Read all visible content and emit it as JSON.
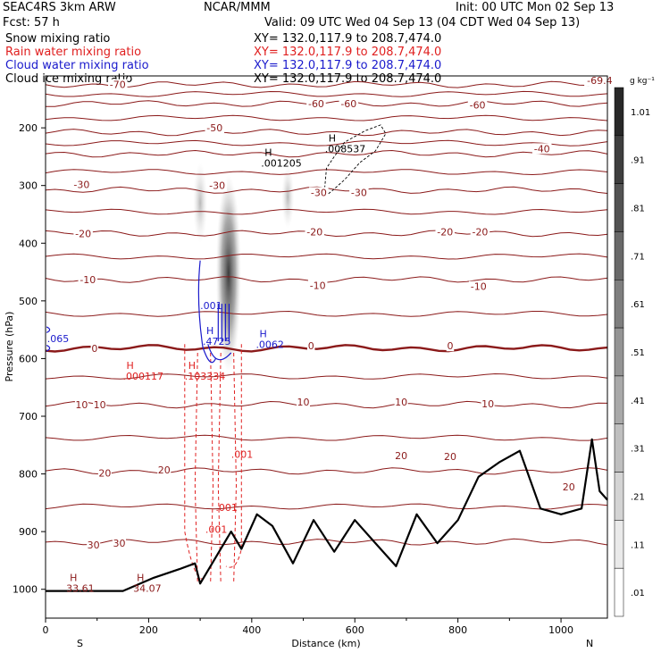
{
  "header": {
    "model": "SEAC4RS   3km ARW",
    "org": "NCAR/MMM",
    "init": "Init: 00 UTC Mon 02 Sep 13",
    "fcst": "Fcst:   57 h",
    "valid": "Valid: 09 UTC Wed 04 Sep 13 (04 CDT Wed 04 Sep 13)",
    "fields": [
      {
        "label": "Snow mixing ratio",
        "xy": "XY= 132.0,117.9 to 208.7,474.0",
        "color": "#000000"
      },
      {
        "label": "Rain water mixing ratio",
        "xy": "XY= 132.0,117.9 to 208.7,474.0",
        "color": "#e02020"
      },
      {
        "label": "Cloud water mixing ratio",
        "xy": "XY= 132.0,117.9 to 208.7,474.0",
        "color": "#1a1acc"
      },
      {
        "label": "Cloud ice mixing ratio",
        "xy": "XY= 132.0,117.9 to 208.7,474.0",
        "color": "#000000"
      }
    ]
  },
  "chart_data": {
    "type": "contour",
    "xlabel": "Distance (km)",
    "ylabel": "Pressure (hPa)",
    "xlim": [
      0,
      1090
    ],
    "ylim": [
      1050,
      110
    ],
    "xticks": [
      0,
      200,
      400,
      600,
      800,
      1000
    ],
    "yticks": [
      200,
      300,
      400,
      500,
      600,
      700,
      800,
      900,
      1000
    ],
    "x_end_labels": {
      "left": "S",
      "right": "N"
    },
    "colorbar": {
      "unit": "g kg⁻¹",
      "labels": [
        "1.01",
        ".91",
        ".81",
        ".71",
        ".61",
        ".51",
        ".41",
        ".31",
        ".21",
        ".11",
        ".01"
      ]
    },
    "temperature_isotherms": [
      {
        "label": "-70",
        "p": 125
      },
      {
        "label": "-60",
        "p": 158
      },
      {
        "label": "-50",
        "p": 208
      },
      {
        "label": "-40",
        "p": 245
      },
      {
        "label": "-30",
        "p": 308
      },
      {
        "label": "-20",
        "p": 383
      },
      {
        "label": "-10",
        "p": 463
      },
      {
        "label": "0",
        "p": 582
      },
      {
        "label": "10",
        "p": 680
      },
      {
        "label": "20",
        "p": 795
      },
      {
        "label": "30",
        "p": 918
      }
    ],
    "isotherm_labels": [
      {
        "text": "-70",
        "x": 140,
        "p": 125
      },
      {
        "text": "-69.4",
        "x": 1075,
        "p": 118
      },
      {
        "text": "-60",
        "x": 525,
        "p": 158
      },
      {
        "text": "-60",
        "x": 588,
        "p": 158
      },
      {
        "text": "-60",
        "x": 838,
        "p": 160
      },
      {
        "text": "-50",
        "x": 328,
        "p": 200
      },
      {
        "text": "-40",
        "x": 963,
        "p": 236
      },
      {
        "text": "-30",
        "x": 70,
        "p": 298
      },
      {
        "text": "-30",
        "x": 333,
        "p": 300
      },
      {
        "text": "-30",
        "x": 530,
        "p": 312
      },
      {
        "text": "-30",
        "x": 608,
        "p": 312
      },
      {
        "text": "-20",
        "x": 73,
        "p": 383
      },
      {
        "text": "-20",
        "x": 522,
        "p": 380
      },
      {
        "text": "-20",
        "x": 775,
        "p": 380
      },
      {
        "text": "-20",
        "x": 843,
        "p": 380
      },
      {
        "text": "-10",
        "x": 82,
        "p": 463
      },
      {
        "text": "-10",
        "x": 528,
        "p": 473
      },
      {
        "text": "-10",
        "x": 840,
        "p": 475
      },
      {
        "text": "0",
        "x": 95,
        "p": 582
      },
      {
        "text": "0",
        "x": 515,
        "p": 578
      },
      {
        "text": "0",
        "x": 785,
        "p": 578
      },
      {
        "text": "10",
        "x": 70,
        "p": 680
      },
      {
        "text": "10",
        "x": 105,
        "p": 680
      },
      {
        "text": "10",
        "x": 500,
        "p": 675
      },
      {
        "text": "10",
        "x": 690,
        "p": 675
      },
      {
        "text": "10",
        "x": 858,
        "p": 678
      },
      {
        "text": "20",
        "x": 115,
        "p": 798
      },
      {
        "text": "20",
        "x": 230,
        "p": 793
      },
      {
        "text": "20",
        "x": 690,
        "p": 768
      },
      {
        "text": "20",
        "x": 785,
        "p": 770
      },
      {
        "text": "20",
        "x": 1015,
        "p": 822
      },
      {
        "text": "30",
        "x": 93,
        "p": 923
      },
      {
        "text": "30",
        "x": 143,
        "p": 920
      }
    ],
    "annotations": [
      {
        "text": "H",
        "sub": ".001205",
        "x": 418,
        "p": 258,
        "color": "#000000"
      },
      {
        "text": "H",
        "sub": ".008537",
        "x": 542,
        "p": 233,
        "color": "#000000"
      },
      {
        "text": "",
        "sub": ".001",
        "x": 300,
        "p": 505,
        "color": "#1a1acc"
      },
      {
        "text": "",
        "sub": ".065",
        "x": 3,
        "p": 562,
        "color": "#1a1acc"
      },
      {
        "text": "H",
        "sub": ".4725",
        "x": 305,
        "p": 567,
        "color": "#1a1acc"
      },
      {
        "text": "H",
        "sub": ".0062",
        "x": 408,
        "p": 572,
        "color": "#1a1acc"
      },
      {
        "text": "H",
        "sub": ".000117",
        "x": 150,
        "p": 627,
        "color": "#e02020"
      },
      {
        "text": "H",
        "sub": ".103334",
        "x": 270,
        "p": 627,
        "color": "#e02020"
      },
      {
        "text": "",
        "sub": ".001",
        "x": 360,
        "p": 763,
        "color": "#e02020"
      },
      {
        "text": "",
        "sub": ".001",
        "x": 330,
        "p": 855,
        "color": "#e02020"
      },
      {
        "text": "",
        "sub": ".001",
        "x": 310,
        "p": 893,
        "color": "#e02020"
      },
      {
        "text": "H",
        "sub": "33.61",
        "x": 40,
        "p": 995,
        "color": "#8b1a1a"
      },
      {
        "text": "H",
        "sub": "34.07",
        "x": 170,
        "p": 995,
        "color": "#8b1a1a"
      }
    ],
    "terrain_surface": [
      {
        "x": 0,
        "p": 1003
      },
      {
        "x": 150,
        "p": 1003
      },
      {
        "x": 210,
        "p": 980
      },
      {
        "x": 260,
        "p": 965
      },
      {
        "x": 290,
        "p": 955
      },
      {
        "x": 300,
        "p": 990
      },
      {
        "x": 330,
        "p": 945
      },
      {
        "x": 360,
        "p": 900
      },
      {
        "x": 380,
        "p": 930
      },
      {
        "x": 410,
        "p": 870
      },
      {
        "x": 440,
        "p": 890
      },
      {
        "x": 480,
        "p": 955
      },
      {
        "x": 520,
        "p": 880
      },
      {
        "x": 560,
        "p": 935
      },
      {
        "x": 600,
        "p": 880
      },
      {
        "x": 640,
        "p": 920
      },
      {
        "x": 680,
        "p": 960
      },
      {
        "x": 720,
        "p": 870
      },
      {
        "x": 760,
        "p": 920
      },
      {
        "x": 800,
        "p": 880
      },
      {
        "x": 840,
        "p": 805
      },
      {
        "x": 880,
        "p": 780
      },
      {
        "x": 920,
        "p": 760
      },
      {
        "x": 960,
        "p": 860
      },
      {
        "x": 1000,
        "p": 870
      },
      {
        "x": 1040,
        "p": 860
      },
      {
        "x": 1060,
        "p": 740
      },
      {
        "x": 1075,
        "p": 830
      },
      {
        "x": 1090,
        "p": 845
      }
    ],
    "snow_maximum": {
      "x": 355,
      "p_top": 320,
      "p_bottom": 585
    },
    "rain_region": {
      "x_min": 270,
      "x_max": 380,
      "p_top": 575,
      "p_bottom": 995
    },
    "cloud_water_region": {
      "x_min": 300,
      "x_max": 360,
      "p_top": 430,
      "p_bottom": 620
    }
  }
}
